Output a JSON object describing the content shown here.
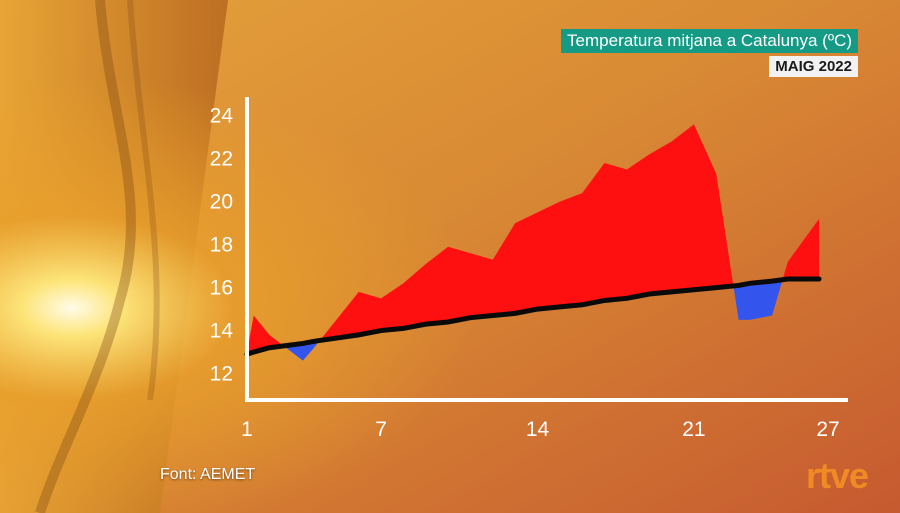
{
  "header": {
    "title": "Temperatura mitjana a Catalunya (ºC)",
    "subtitle": "MAIG 2022"
  },
  "footer": {
    "source": "Font: AEMET",
    "logo": "rtve"
  },
  "colors": {
    "above": "#ff1010",
    "below": "#3355ee",
    "normal_line": "#0a0a0a",
    "axis": "#ffffff",
    "title_bg": "#159a86",
    "logo": "#f08a24"
  },
  "chart_data": {
    "type": "area",
    "title": "Temperatura mitjana a Catalunya (ºC)",
    "subtitle": "MAIG 2022",
    "xlabel": "",
    "ylabel": "",
    "xlim": [
      1,
      27
    ],
    "ylim": [
      11,
      24.5
    ],
    "x_ticks": [
      1,
      7,
      14,
      21,
      27
    ],
    "y_ticks": [
      12,
      14,
      16,
      18,
      20,
      22,
      24
    ],
    "grid": false,
    "legend": "none",
    "x": [
      1,
      1.3,
      2,
      3.5,
      4,
      6,
      7,
      8,
      9,
      10,
      11,
      12,
      13,
      14,
      15,
      16,
      17,
      18,
      19,
      20,
      21,
      22,
      23,
      23.5,
      24.5,
      25.2,
      26.6
    ],
    "series": [
      {
        "values": [
          13.0,
          14.7,
          13.8,
          12.6,
          13.2,
          15.8,
          15.5,
          16.2,
          17.1,
          17.9,
          17.6,
          17.3,
          19.0,
          19.5,
          20.0,
          20.4,
          21.8,
          21.5,
          22.2,
          22.8,
          23.6,
          21.3,
          14.5,
          14.5,
          14.7,
          17.2,
          19.2
        ]
      },
      {
        "values": [
          12.9,
          13.0,
          13.2,
          13.4,
          13.5,
          13.8,
          14.0,
          14.1,
          14.3,
          14.4,
          14.6,
          14.7,
          14.8,
          15.0,
          15.1,
          15.2,
          15.4,
          15.5,
          15.7,
          15.8,
          15.9,
          16.0,
          16.1,
          16.2,
          16.3,
          16.4,
          16.4
        ]
      }
    ]
  }
}
